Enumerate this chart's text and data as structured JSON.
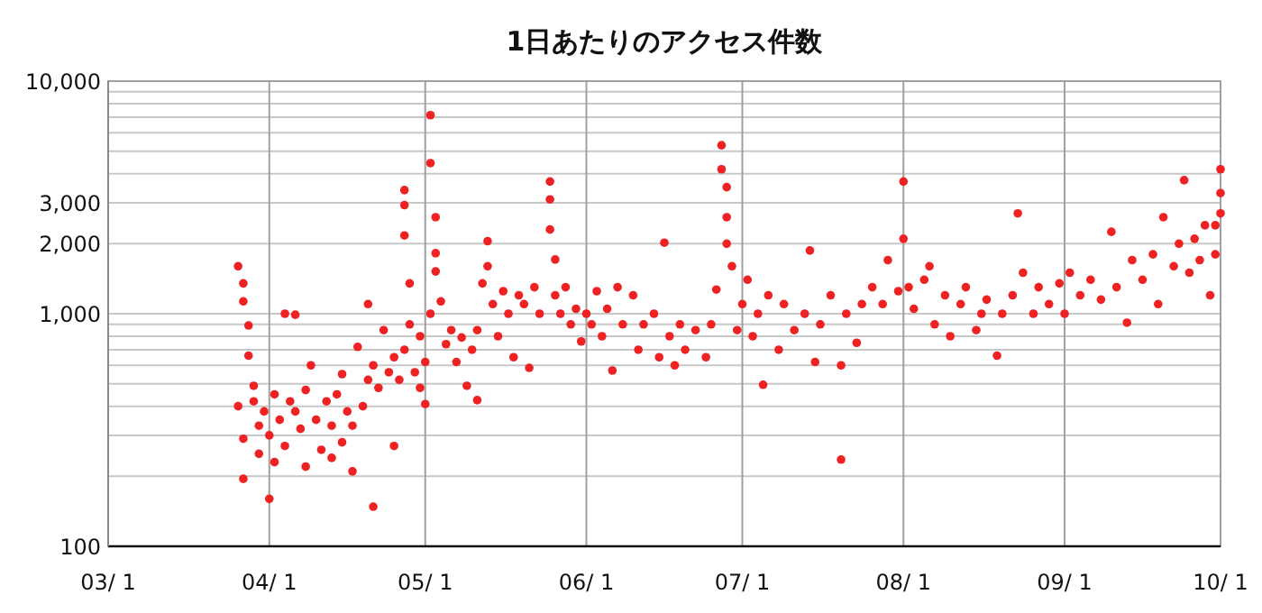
{
  "chart_data": {
    "type": "scatter",
    "title": "1日あたりのアクセス件数",
    "log": "y",
    "grid": true,
    "marker": "circle",
    "xlim": [
      "--03-01",
      "--10-01"
    ],
    "xticks": [
      {
        "value": "--03-01",
        "label": "03/ 1"
      },
      {
        "value": "--04-01",
        "label": "04/ 1"
      },
      {
        "value": "--05-01",
        "label": "05/ 1"
      },
      {
        "value": "--06-01",
        "label": "06/ 1"
      },
      {
        "value": "--07-01",
        "label": "07/ 1"
      },
      {
        "value": "--08-01",
        "label": "08/ 1"
      },
      {
        "value": "--09-01",
        "label": "09/ 1"
      },
      {
        "value": "--10-01",
        "label": "10/ 1"
      }
    ],
    "ylim": [
      100,
      10000
    ],
    "yticks": [
      100,
      {
        "value": 200,
        "label": null
      },
      {
        "value": 300,
        "label": null
      },
      {
        "value": 400,
        "label": null
      },
      {
        "value": 500,
        "label": null
      },
      {
        "value": 600,
        "label": null
      },
      {
        "value": 700,
        "label": null
      },
      {
        "value": 800,
        "label": null
      },
      {
        "value": 900,
        "label": null
      },
      {
        "value": 1000,
        "label": "1,000"
      },
      {
        "value": 2000,
        "label": "2,000"
      },
      {
        "value": 3000,
        "label": "3,000"
      },
      {
        "value": 4000,
        "label": null
      },
      {
        "value": 5000,
        "label": null
      },
      {
        "value": 6000,
        "label": null
      },
      {
        "value": 7000,
        "label": null
      },
      {
        "value": 8000,
        "label": null
      },
      {
        "value": 9000,
        "label": null
      },
      {
        "value": 10000,
        "label": "10,000"
      }
    ],
    "series": [
      {
        "color": "#ee2222",
        "x": [
          "--03-26",
          "--03-26",
          "--03-27",
          "--03-27",
          "--03-27",
          "--03-27",
          "--03-28",
          "--03-28",
          "--03-29",
          "--03-29",
          "--03-30",
          "--03-30",
          "--03-31",
          "--04-01",
          "--04-01",
          "--04-02",
          "--04-02",
          "--04-03",
          "--04-04",
          "--04-04",
          "--04-05",
          "--04-06",
          "--04-06",
          "--04-07",
          "--04-08",
          "--04-08",
          "--04-09",
          "--04-10",
          "--04-11",
          "--04-12",
          "--04-13",
          "--04-13",
          "--04-14",
          "--04-15",
          "--04-15",
          "--04-16",
          "--04-17",
          "--04-17",
          "--04-18",
          "--04-19",
          "--04-20",
          "--04-20",
          "--04-21",
          "--04-21",
          "--04-22",
          "--04-23",
          "--04-24",
          "--04-25",
          "--04-25",
          "--04-26",
          "--04-27",
          "--04-27",
          "--04-27",
          "--04-27",
          "--04-28",
          "--04-28",
          "--04-29",
          "--04-30",
          "--04-30",
          "--05-01",
          "--05-01",
          "--05-02",
          "--05-02",
          "--05-02",
          "--05-03",
          "--05-03",
          "--05-03",
          "--05-04",
          "--05-05",
          "--05-06",
          "--05-07",
          "--05-08",
          "--05-09",
          "--05-10",
          "--05-11",
          "--05-11",
          "--05-12",
          "--05-13",
          "--05-13",
          "--05-14",
          "--05-15",
          "--05-16",
          "--05-17",
          "--05-18",
          "--05-19",
          "--05-20",
          "--05-21",
          "--05-22",
          "--05-23",
          "--05-25",
          "--05-25",
          "--05-25",
          "--05-26",
          "--05-26",
          "--05-27",
          "--05-28",
          "--05-29",
          "--05-30",
          "--05-31",
          "--06-01",
          "--06-02",
          "--06-03",
          "--06-04",
          "--06-05",
          "--06-06",
          "--06-07",
          "--06-08",
          "--06-10",
          "--06-11",
          "--06-12",
          "--06-14",
          "--06-15",
          "--06-16",
          "--06-17",
          "--06-18",
          "--06-19",
          "--06-20",
          "--06-22",
          "--06-24",
          "--06-25",
          "--06-26",
          "--06-27",
          "--06-27",
          "--06-28",
          "--06-28",
          "--06-28",
          "--06-29",
          "--06-30",
          "--07-01",
          "--07-02",
          "--07-03",
          "--07-04",
          "--07-05",
          "--07-06",
          "--07-08",
          "--07-09",
          "--07-11",
          "--07-13",
          "--07-14",
          "--07-15",
          "--07-16",
          "--07-18",
          "--07-20",
          "--07-20",
          "--07-21",
          "--07-23",
          "--07-24",
          "--07-26",
          "--07-28",
          "--07-29",
          "--07-31",
          "--08-01",
          "--08-01",
          "--08-02",
          "--08-03",
          "--08-05",
          "--08-06",
          "--08-07",
          "--08-09",
          "--08-10",
          "--08-12",
          "--08-13",
          "--08-15",
          "--08-16",
          "--08-17",
          "--08-19",
          "--08-20",
          "--08-22",
          "--08-23",
          "--08-24",
          "--08-26",
          "--08-27",
          "--08-29",
          "--08-31",
          "--09-01",
          "--09-02",
          "--09-04",
          "--09-06",
          "--09-08",
          "--09-10",
          "--09-11",
          "--09-13",
          "--09-14",
          "--09-16",
          "--09-18",
          "--09-19",
          "--09-20",
          "--09-22",
          "--09-23",
          "--09-24",
          "--09-25",
          "--09-26",
          "--09-27",
          "--09-28",
          "--09-29",
          "--09-30",
          "--09-30",
          "--10-01",
          "--10-01",
          "--10-01"
        ],
        "values": [
          400,
          1600,
          1130,
          1350,
          290,
          195,
          890,
          660,
          490,
          420,
          330,
          250,
          380,
          160,
          300,
          450,
          230,
          350,
          1000,
          270,
          420,
          990,
          380,
          320,
          470,
          220,
          600,
          350,
          260,
          420,
          330,
          240,
          450,
          550,
          280,
          380,
          210,
          330,
          720,
          400,
          520,
          1100,
          148,
          600,
          480,
          850,
          560,
          270,
          650,
          520,
          700,
          3400,
          2930,
          2170,
          1350,
          900,
          560,
          800,
          480,
          620,
          409,
          1000,
          7140,
          4440,
          2600,
          1820,
          1520,
          1130,
          740,
          850,
          620,
          790,
          490,
          700,
          425,
          850,
          1350,
          2050,
          1600,
          1100,
          800,
          1250,
          1000,
          650,
          1200,
          1100,
          585,
          1300,
          1000,
          3700,
          3100,
          2300,
          1710,
          1200,
          1000,
          1300,
          900,
          1050,
          760,
          1000,
          900,
          1250,
          800,
          1050,
          570,
          1300,
          900,
          1200,
          700,
          900,
          1000,
          650,
          2020,
          800,
          600,
          900,
          700,
          850,
          650,
          900,
          1270,
          5300,
          4180,
          3500,
          2600,
          2000,
          1600,
          850,
          1100,
          1400,
          800,
          1000,
          495,
          1200,
          700,
          1100,
          850,
          1000,
          1870,
          620,
          900,
          1200,
          600,
          236,
          1000,
          750,
          1100,
          1300,
          1100,
          1700,
          1250,
          3700,
          2100,
          1300,
          1050,
          1400,
          1600,
          900,
          1200,
          800,
          1100,
          1300,
          850,
          1000,
          1150,
          660,
          1000,
          1200,
          2700,
          1500,
          1000,
          1300,
          1100,
          1350,
          1000,
          1500,
          1200,
          1400,
          1150,
          2250,
          1300,
          915,
          1700,
          1400,
          1800,
          1100,
          2600,
          1600,
          2000,
          3750,
          1500,
          2100,
          1700,
          2400,
          1200,
          1800,
          2400,
          4180,
          3300,
          2700
        ]
      }
    ]
  }
}
